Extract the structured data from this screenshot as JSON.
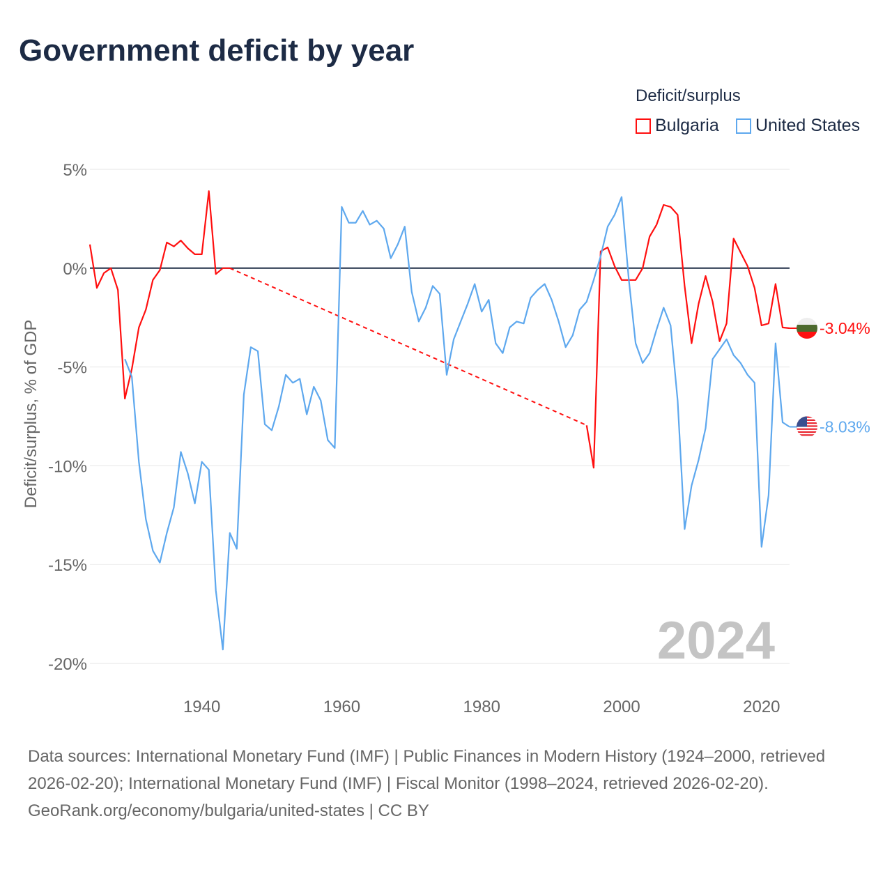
{
  "title": "Government deficit by year",
  "legend": {
    "title": "Deficit/surplus",
    "items": [
      {
        "name": "Bulgaria",
        "color": "#ff0f0f"
      },
      {
        "name": "United States",
        "color": "#5ea8ee"
      }
    ]
  },
  "current_year": "2024",
  "end_labels": {
    "bulgaria": "-3.04%",
    "united_states": "-8.03%"
  },
  "footer": {
    "sources": "Data sources: International Monetary Fund (IMF) | Public Finances in Modern History (1924–2000, retrieved 2026-02-20); International Monetary Fund (IMF) | Fiscal Monitor (1998–2024, retrieved 2026-02-20).",
    "credit": "GeoRank.org/economy/bulgaria/united-states | CC BY"
  },
  "chart_data": {
    "type": "line",
    "title": "Government deficit by year",
    "xlabel": "",
    "ylabel": "Deficit/surplus, % of GDP",
    "xlim": [
      1924,
      2024
    ],
    "ylim": [
      -20,
      5
    ],
    "xticks": [
      1940,
      1960,
      1980,
      2000,
      2020
    ],
    "yticks": [
      5,
      0,
      -5,
      -10,
      -15,
      -20
    ],
    "ytick_labels": [
      "5%",
      "0%",
      "-5%",
      "-10%",
      "-15%",
      "-20%"
    ],
    "grid": true,
    "legend_position": "top-right",
    "series": [
      {
        "name": "Bulgaria",
        "segments": [
          {
            "start": 1924,
            "values": [
              1.2,
              -1.0,
              -0.25,
              0,
              -1.1,
              -6.6,
              -5.1,
              -3.0,
              -2.1,
              -0.6,
              -0.1,
              1.3,
              1.1,
              1.4,
              1.0,
              0.7,
              0.7,
              3.9,
              -0.3,
              0,
              0
            ]
          },
          {
            "start": 1995,
            "values": [
              -7.95,
              -10.1,
              0.85,
              1.05,
              0.1,
              -0.6,
              -0.6,
              -0.6,
              0,
              1.6,
              2.2,
              3.2,
              3.1,
              2.7,
              -0.9,
              -3.8,
              -1.8,
              -0.4,
              -1.7,
              -3.7,
              -2.8,
              1.5,
              0.8,
              0.1,
              -1.0,
              -2.9,
              -2.8,
              -0.8,
              -3.0,
              -3.04
            ]
          }
        ],
        "interpolated_gap": [
          1944,
          1995
        ]
      },
      {
        "name": "United States",
        "segments": [
          {
            "start": 1929,
            "values": [
              -4.6,
              -5.5,
              -9.8,
              -12.7,
              -14.3,
              -14.9,
              -13.4,
              -12.1,
              -9.3,
              -10.4,
              -11.9,
              -9.8,
              -10.2,
              -16.3,
              -19.3,
              -13.4,
              -14.2,
              -6.4,
              -4.0,
              -4.2,
              -7.9,
              -8.2,
              -7.0,
              -5.4,
              -5.8,
              -5.6,
              -7.4,
              -6.0,
              -6.7,
              -8.7,
              -9.1,
              3.1,
              2.3,
              2.3,
              2.9,
              2.2,
              2.4,
              2.0,
              0.5,
              1.2,
              2.1,
              -1.2,
              -2.7,
              -2.0,
              -0.9,
              -1.3,
              -5.4,
              -3.6,
              -2.7,
              -1.8,
              -0.8,
              -2.2,
              -1.6,
              -3.8,
              -4.3,
              -3.0,
              -2.7,
              -2.8,
              -1.5,
              -1.1,
              -0.8,
              -1.6,
              -2.7,
              -4.0,
              -3.4,
              -2.1,
              -1.7,
              -0.6,
              0.6,
              2.1,
              2.7,
              3.6,
              -0.5,
              -3.8,
              -4.8,
              -4.3,
              -3.1,
              -2.0,
              -2.9,
              -6.7,
              -13.2,
              -11.0,
              -9.7,
              -8.1,
              -4.6,
              -4.1,
              -3.6,
              -4.4,
              -4.8,
              -5.4,
              -5.8,
              -14.1,
              -11.5,
              -3.8,
              -7.8,
              -8.03
            ]
          }
        ]
      }
    ]
  }
}
